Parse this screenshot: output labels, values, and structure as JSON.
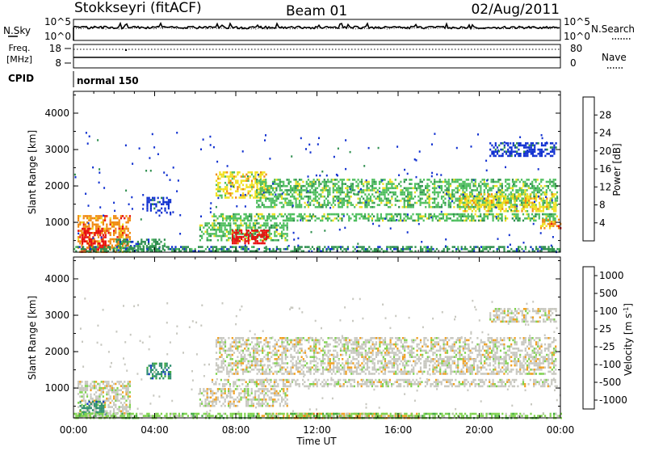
{
  "header": {
    "station": "Stokkseyri (fitACF)",
    "beam": "Beam 01",
    "date": "02/Aug/2011"
  },
  "aux": {
    "nsky_label": "N.Sky",
    "nsky_ticks": [
      "10^5",
      "10^0"
    ],
    "nsearch_label": "N.Search",
    "nsearch_ticks": [
      "10^5",
      "10^0"
    ],
    "freq_label_line1": "Freq.",
    "freq_label_line2": "[MHz]",
    "freq_ticks": [
      "18",
      "8"
    ],
    "nave_label": "Nave",
    "nave_ticks": [
      "80",
      "0"
    ],
    "cpid_label": "CPID",
    "mode_text": "normal 150"
  },
  "chart_data": [
    {
      "type": "heatmap",
      "name": "power",
      "ylabel": "Slant Range [km]",
      "xlabel": "",
      "y_ticks": [
        1000,
        2000,
        3000,
        4000
      ],
      "ylim": [
        180,
        4600
      ],
      "x_ticks": [
        "00:00",
        "04:00",
        "08:00",
        "12:00",
        "16:00",
        "20:00",
        "00:00"
      ],
      "xlim_hours": [
        0,
        24
      ],
      "colorbar": {
        "label": "Power [dB]",
        "ticks": [
          "4",
          "8",
          "12",
          "16",
          "20",
          "24",
          "28"
        ],
        "colors": [
          "#1030d0",
          "#2f8f4f",
          "#4fbf5f",
          "#f0e020",
          "#f08a10",
          "#e81010"
        ]
      },
      "regions": [
        {
          "t0": 0.2,
          "t1": 2.8,
          "r0": 180,
          "r1": 1200,
          "level": 4
        },
        {
          "t0": 0.4,
          "t1": 1.6,
          "r0": 250,
          "r1": 850,
          "level": 5
        },
        {
          "t0": 2.0,
          "t1": 4.5,
          "r0": 250,
          "r1": 550,
          "level": 1
        },
        {
          "t0": 3.6,
          "t1": 4.8,
          "r0": 1250,
          "r1": 1700,
          "level": 0
        },
        {
          "t0": 6.2,
          "t1": 10.5,
          "r0": 500,
          "r1": 1000,
          "level": 2
        },
        {
          "t0": 7.8,
          "t1": 9.6,
          "r0": 420,
          "r1": 800,
          "level": 5
        },
        {
          "t0": 6.8,
          "t1": 23.8,
          "r0": 1050,
          "r1": 1250,
          "level": 2
        },
        {
          "t0": 7.0,
          "t1": 9.5,
          "r0": 1700,
          "r1": 2400,
          "level": 3
        },
        {
          "t0": 9.0,
          "t1": 23.8,
          "r0": 1400,
          "r1": 2200,
          "level": 2
        },
        {
          "t0": 19.0,
          "t1": 23.8,
          "r0": 1300,
          "r1": 1800,
          "level": 3
        },
        {
          "t0": 20.5,
          "t1": 23.8,
          "r0": 2800,
          "r1": 3200,
          "level": 0
        },
        {
          "t0": 23.0,
          "t1": 24.0,
          "r0": 850,
          "r1": 1100,
          "level": 4
        },
        {
          "t0": 0.0,
          "t1": 24.0,
          "r0": 180,
          "r1": 350,
          "level": 1
        }
      ]
    },
    {
      "type": "heatmap",
      "name": "velocity",
      "ylabel": "Slant Range [km]",
      "xlabel": "Time UT",
      "y_ticks": [
        1000,
        2000,
        3000,
        4000
      ],
      "ylim": [
        180,
        4600
      ],
      "x_ticks": [
        "00:00",
        "04:00",
        "08:00",
        "12:00",
        "16:00",
        "20:00",
        "00:00"
      ],
      "xlim_hours": [
        0,
        24
      ],
      "colorbar": {
        "label": "Velocity [m s-1]",
        "ticks": [
          "1000",
          "500",
          "100",
          "25",
          "-25",
          "-100",
          "-500",
          "-1000"
        ],
        "colors": [
          "#1a3fbf",
          "#2f8f6f",
          "#3faa3f",
          "#7fd34f",
          "#c8c8c0",
          "#f0a020",
          "#f07010",
          "#e81010"
        ]
      },
      "regions": [
        {
          "t0": 0.2,
          "t1": 2.8,
          "r0": 180,
          "r1": 1200,
          "level": 4
        },
        {
          "t0": 0.3,
          "t1": 1.6,
          "r0": 250,
          "r1": 650,
          "level": 1
        },
        {
          "t0": 3.6,
          "t1": 4.8,
          "r0": 1250,
          "r1": 1700,
          "level": 1
        },
        {
          "t0": 6.2,
          "t1": 10.5,
          "r0": 500,
          "r1": 1000,
          "level": 4
        },
        {
          "t0": 6.8,
          "t1": 23.8,
          "r0": 1050,
          "r1": 1250,
          "level": 4
        },
        {
          "t0": 7.0,
          "t1": 23.8,
          "r0": 1400,
          "r1": 2400,
          "level": 4
        },
        {
          "t0": 20.5,
          "t1": 23.8,
          "r0": 2800,
          "r1": 3200,
          "level": 4
        },
        {
          "t0": 9.0,
          "t1": 17.0,
          "r0": 180,
          "r1": 320,
          "level": 5
        },
        {
          "t0": 0.0,
          "t1": 24.0,
          "r0": 180,
          "r1": 320,
          "level": 3
        }
      ]
    }
  ]
}
